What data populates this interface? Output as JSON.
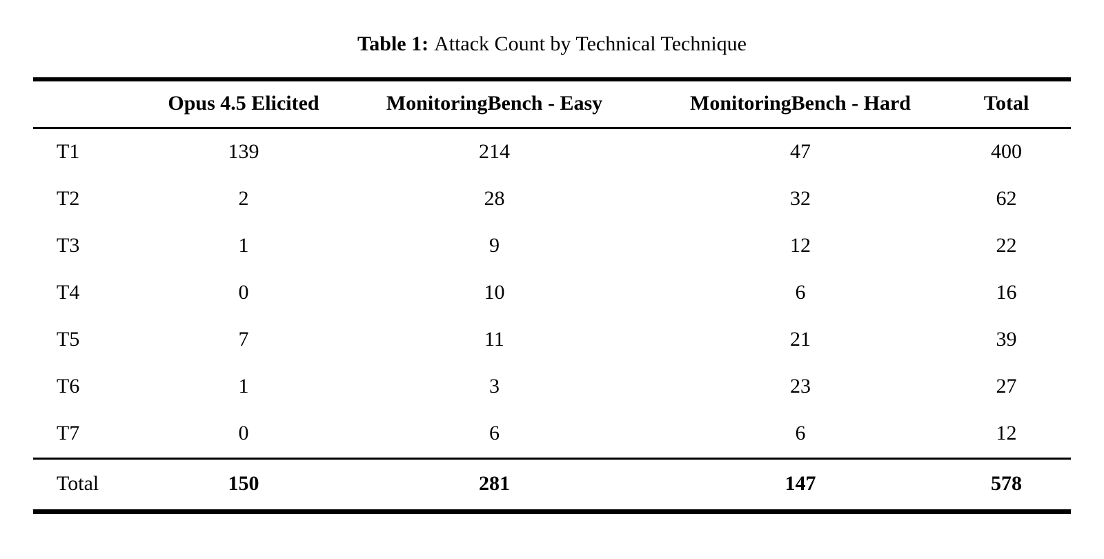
{
  "caption": {
    "label": "Table 1:",
    "text": "Attack Count by Technical Technique"
  },
  "table": {
    "columns": [
      "",
      "Opus 4.5 Elicited",
      "MonitoringBench - Easy",
      "MonitoringBench - Hard",
      "Total"
    ],
    "rows": [
      {
        "label": "T1",
        "values": [
          "139",
          "214",
          "47",
          "400"
        ]
      },
      {
        "label": "T2",
        "values": [
          "2",
          "28",
          "32",
          "62"
        ]
      },
      {
        "label": "T3",
        "values": [
          "1",
          "9",
          "12",
          "22"
        ]
      },
      {
        "label": "T4",
        "values": [
          "0",
          "10",
          "6",
          "16"
        ]
      },
      {
        "label": "T5",
        "values": [
          "7",
          "11",
          "21",
          "39"
        ]
      },
      {
        "label": "T6",
        "values": [
          "1",
          "3",
          "23",
          "27"
        ]
      },
      {
        "label": "T7",
        "values": [
          "0",
          "6",
          "6",
          "12"
        ]
      }
    ],
    "footer": {
      "label": "Total",
      "values": [
        "150",
        "281",
        "147",
        "578"
      ]
    }
  },
  "colors": {
    "text": "#000000",
    "background": "#ffffff",
    "rule": "#000000"
  }
}
